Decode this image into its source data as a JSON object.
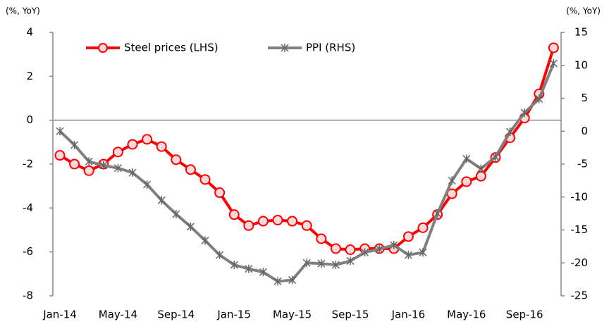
{
  "chart_data": {
    "type": "line",
    "categories": [
      "Jan-14",
      null,
      null,
      null,
      "May-14",
      null,
      null,
      null,
      "Sep-14",
      null,
      null,
      null,
      "Jan-15",
      null,
      null,
      null,
      "May-15",
      null,
      null,
      null,
      "Sep-15",
      null,
      null,
      null,
      "Jan-16",
      null,
      null,
      null,
      "May-16",
      null,
      null,
      null,
      "Sep-16",
      null,
      null
    ],
    "y_label": "(%, YoY)",
    "y2_label": "(%, YoY)",
    "ylim": [
      -8,
      4
    ],
    "yticks": [
      -8,
      -6,
      -4,
      -2,
      0,
      2,
      4
    ],
    "y2lim": [
      -25,
      15
    ],
    "y2ticks": [
      -25,
      -20,
      -15,
      -10,
      -5,
      0,
      5,
      10,
      15
    ],
    "legend": "top-left",
    "series": [
      {
        "name": "Steel prices (LHS)",
        "color": "#ff0000",
        "marker": "circle",
        "values": [
          -1.6,
          -2.0,
          -2.3,
          -2.0,
          -1.45,
          -1.1,
          -0.87,
          -1.2,
          -1.8,
          -2.25,
          -2.7,
          -3.3,
          -4.3,
          -4.8,
          -4.6,
          -4.55,
          -4.6,
          -4.8,
          -5.4,
          -5.85,
          -5.9,
          -5.85,
          -5.85,
          -5.85,
          -5.3,
          -4.9,
          -4.3,
          -3.35,
          -2.8,
          -2.55,
          -1.7,
          -0.8,
          0.1,
          1.2,
          3.3
        ]
      },
      {
        "name": "PPI (RHS)",
        "color": "#808080",
        "marker": "star",
        "axis": "y2",
        "values": [
          0,
          -2.1,
          -4.6,
          -5.2,
          -5.6,
          -6.3,
          -8.1,
          -10.5,
          -12.6,
          -14.5,
          -16.6,
          -18.8,
          -20.3,
          -20.9,
          -21.4,
          -22.8,
          -22.6,
          -20.0,
          -20.1,
          -20.3,
          -19.7,
          -18.4,
          -17.9,
          -17.3,
          -18.8,
          -18.4,
          -12.5,
          -7.5,
          -4.2,
          -5.7,
          -3.9,
          -0.1,
          2.8,
          4.9,
          10.3
        ]
      }
    ]
  }
}
